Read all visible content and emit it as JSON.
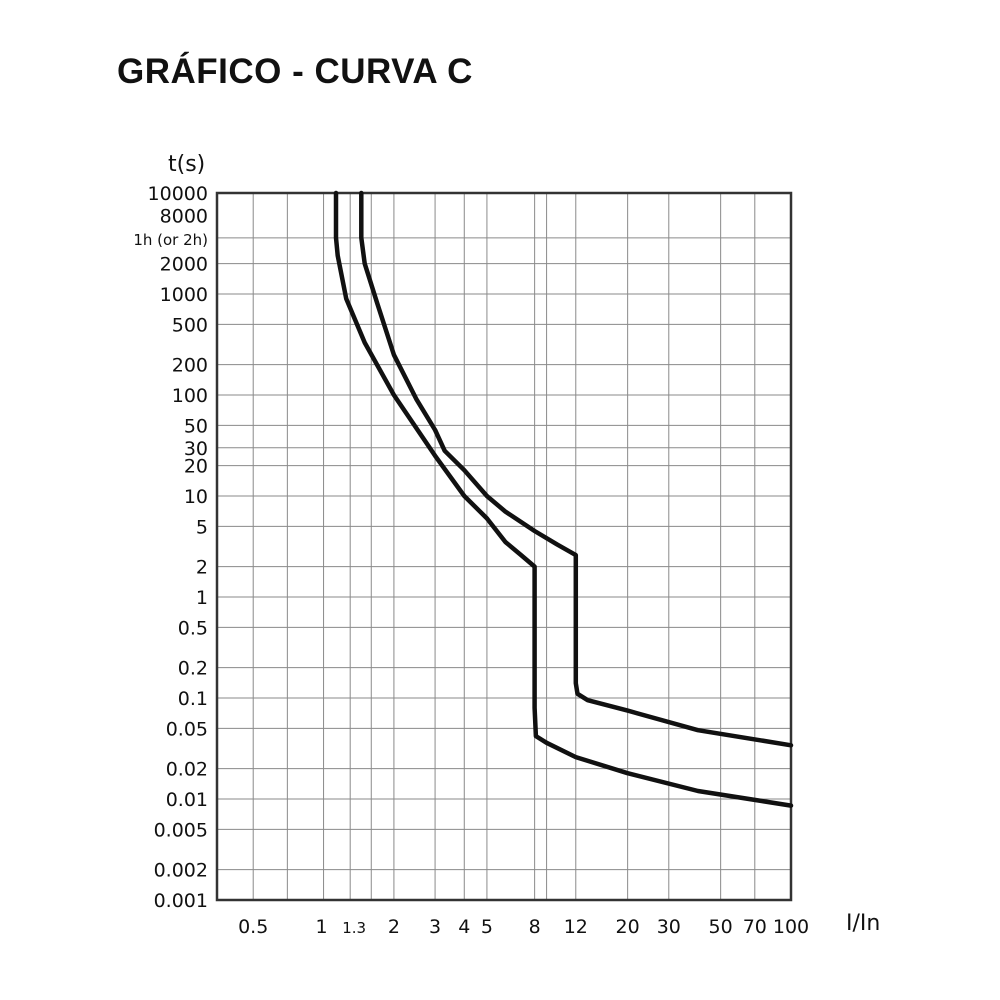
{
  "title": "GRÁFICO - CURVA C",
  "chart_data": {
    "type": "line",
    "title": "GRÁFICO - CURVA C",
    "xlabel": "I/In",
    "ylabel": "t(s)",
    "x_scale": "log",
    "y_scale": "log",
    "xlim": [
      0.35,
      100
    ],
    "ylim": [
      0.001,
      10000
    ],
    "grid": true,
    "x_ticks": [
      "0.5",
      "1",
      "1.3",
      "2",
      "3",
      "4",
      "5",
      "8",
      "12",
      "20",
      "30",
      "50",
      "70",
      "100"
    ],
    "y_ticks": [
      "10000",
      "8000",
      "1h (or 2h)",
      "2000",
      "1000",
      "500",
      "200",
      "100",
      "50",
      "30",
      "20",
      "10",
      "5",
      "2",
      "1",
      "0.5",
      "0.2",
      "0.1",
      "0.05",
      "0.02",
      "0.01",
      "0.005",
      "0.002",
      "0.001"
    ],
    "series": [
      {
        "x": [
          1.13,
          1.13,
          1.15,
          1.25,
          1.5,
          2,
          3,
          4,
          5,
          6,
          7,
          8,
          8,
          8.1,
          9,
          12,
          20,
          40,
          100
        ],
        "y": [
          10000,
          3600,
          2400,
          900,
          330,
          100,
          25,
          10,
          6,
          3.5,
          2.6,
          2,
          0.08,
          0.042,
          0.036,
          0.026,
          0.018,
          0.012,
          0.0086
        ]
      },
      {
        "x": [
          1.45,
          1.45,
          1.5,
          1.7,
          2,
          2.5,
          3,
          3.3,
          4,
          5,
          6,
          8,
          10,
          12,
          12,
          12.2,
          13.5,
          20,
          40,
          100
        ],
        "y": [
          10000,
          3600,
          2000,
          800,
          250,
          90,
          45,
          28,
          18,
          10,
          7,
          4.5,
          3.3,
          2.6,
          0.14,
          0.11,
          0.095,
          0.075,
          0.048,
          0.034
        ]
      }
    ]
  }
}
